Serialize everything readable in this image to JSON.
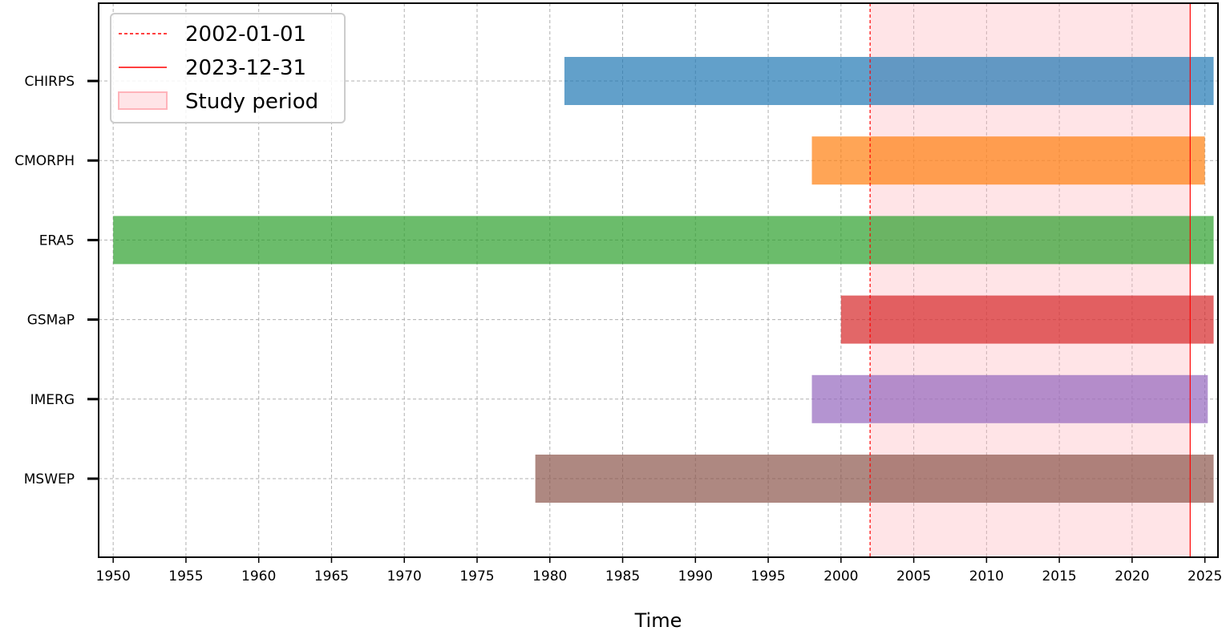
{
  "chart_data": {
    "type": "timeline",
    "xlabel": "Time",
    "ylabel": "",
    "xlim": [
      1949.0,
      2025.9
    ],
    "xticks": [
      1950,
      1955,
      1960,
      1965,
      1970,
      1975,
      1980,
      1985,
      1990,
      1995,
      2000,
      2005,
      2010,
      2015,
      2020,
      2025
    ],
    "grid": true,
    "legend_position": "upper-left",
    "datasets": [
      {
        "name": "CHIRPS",
        "start": 1981.0,
        "end": 2025.6,
        "color": "#1f77b4"
      },
      {
        "name": "CMORPH",
        "start": 1998.0,
        "end": 2025.0,
        "color": "#ff7f0e"
      },
      {
        "name": "ERA5",
        "start": 1950.0,
        "end": 2025.6,
        "color": "#2ca02c"
      },
      {
        "name": "GSMaP",
        "start": 2000.0,
        "end": 2025.6,
        "color": "#d62728"
      },
      {
        "name": "IMERG",
        "start": 1998.0,
        "end": 2025.2,
        "color": "#9467bd"
      },
      {
        "name": "MSWEP",
        "start": 1979.0,
        "end": 2025.6,
        "color": "#8c564b"
      }
    ],
    "study_period": {
      "start": 2002.0,
      "end": 2023.99,
      "start_label": "2002-01-01",
      "end_label": "2023-12-31",
      "label": "Study period",
      "line_color": "#ff0000",
      "fill_color": "#ffb3ba"
    }
  }
}
